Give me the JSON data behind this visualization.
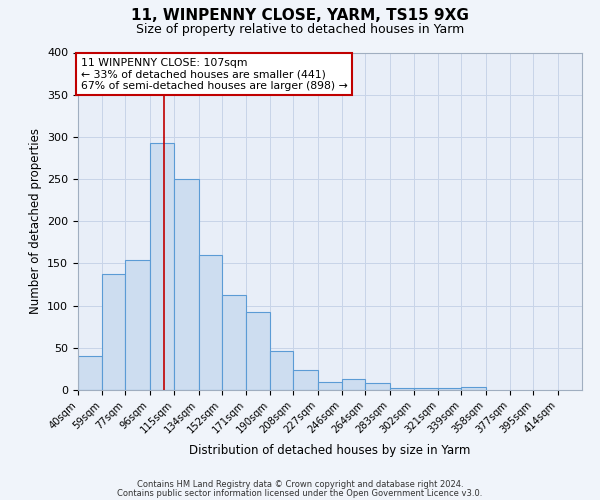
{
  "title": "11, WINPENNY CLOSE, YARM, TS15 9XG",
  "subtitle": "Size of property relative to detached houses in Yarm",
  "xlabel": "Distribution of detached houses by size in Yarm",
  "ylabel": "Number of detached properties",
  "bar_values": [
    40,
    138,
    154,
    293,
    250,
    160,
    113,
    92,
    46,
    24,
    10,
    13,
    8,
    2,
    2,
    2,
    3,
    0,
    0,
    0,
    0
  ],
  "bin_labels": [
    "40sqm",
    "59sqm",
    "77sqm",
    "96sqm",
    "115sqm",
    "134sqm",
    "152sqm",
    "171sqm",
    "190sqm",
    "208sqm",
    "227sqm",
    "246sqm",
    "264sqm",
    "283sqm",
    "302sqm",
    "321sqm",
    "339sqm",
    "358sqm",
    "377sqm",
    "395sqm",
    "414sqm"
  ],
  "bin_edges": [
    40,
    59,
    77,
    96,
    115,
    134,
    152,
    171,
    190,
    208,
    227,
    246,
    264,
    283,
    302,
    321,
    339,
    358,
    377,
    395,
    414,
    433
  ],
  "bar_color": "#cdddf0",
  "bar_edge_color": "#5b9bd5",
  "property_size": 107,
  "vline_color": "#c00000",
  "annotation_line1": "11 WINPENNY CLOSE: 107sqm",
  "annotation_line2": "← 33% of detached houses are smaller (441)",
  "annotation_line3": "67% of semi-detached houses are larger (898) →",
  "annotation_box_color": "#ffffff",
  "annotation_box_edge": "#c00000",
  "ylim": [
    0,
    400
  ],
  "yticks": [
    0,
    50,
    100,
    150,
    200,
    250,
    300,
    350,
    400
  ],
  "grid_color": "#c8d4e8",
  "bg_color": "#e8eef8",
  "footer_line1": "Contains HM Land Registry data © Crown copyright and database right 2024.",
  "footer_line2": "Contains public sector information licensed under the Open Government Licence v3.0."
}
